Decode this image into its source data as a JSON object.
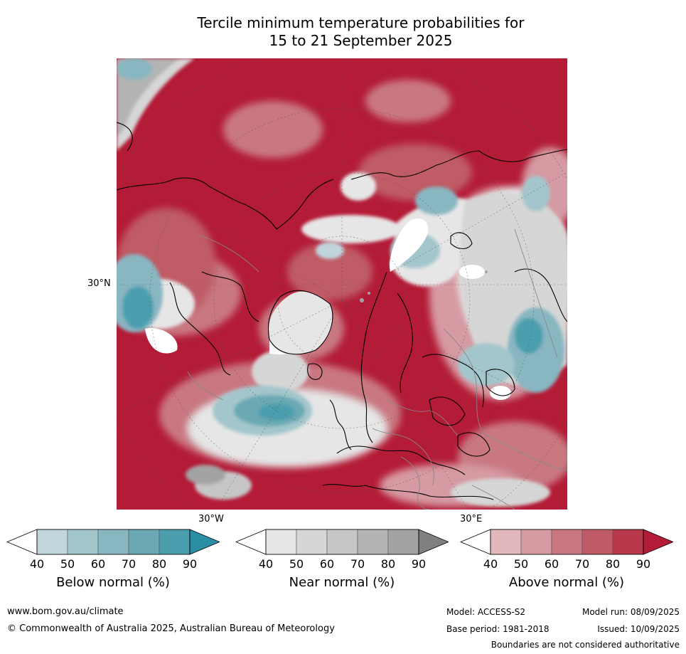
{
  "title": {
    "line1": "Tercile minimum temperature probabilities for",
    "line2": "15 to 21 September 2025"
  },
  "map": {
    "lat_label": "30°N",
    "lon_label_left": "30°W",
    "lon_label_right": "30°E",
    "colors": {
      "below": [
        "#c0d6dc",
        "#a3c6cc",
        "#88b6c1",
        "#6aa9b4",
        "#4b9eae",
        "#2a8ea4"
      ],
      "near": [
        "#e6e6e6",
        "#d6d6d6",
        "#c6c6c6",
        "#b4b4b4",
        "#a3a3a3",
        "#7f7f7f"
      ],
      "above": [
        "#e2b8bd",
        "#d69aa2",
        "#c97882",
        "#bf5b66",
        "#b8384a",
        "#b31b36"
      ]
    }
  },
  "colorbars": [
    {
      "title": "Below normal (%)",
      "ticks": [
        "40",
        "50",
        "60",
        "70",
        "80",
        "90"
      ],
      "colors": [
        "#c0d6dc",
        "#a3c6cc",
        "#88b6c1",
        "#6aa9b4",
        "#4b9eae",
        "#2a8ea4"
      ]
    },
    {
      "title": "Near normal (%)",
      "ticks": [
        "40",
        "50",
        "60",
        "70",
        "80",
        "90"
      ],
      "colors": [
        "#e6e6e6",
        "#d6d6d6",
        "#c6c6c6",
        "#b4b4b4",
        "#a3a3a3",
        "#7f7f7f"
      ]
    },
    {
      "title": "Above normal (%)",
      "ticks": [
        "40",
        "50",
        "60",
        "70",
        "80",
        "90"
      ],
      "colors": [
        "#e2b8bd",
        "#d69aa2",
        "#c97882",
        "#bf5b66",
        "#b8384a",
        "#b31b36"
      ]
    }
  ],
  "footer": {
    "website": "www.bom.gov.au/climate",
    "copyright": "© Commonwealth of Australia 2025, Australian Bureau of Meteorology",
    "model": "Model: ACCESS-S2",
    "model_run": "Model run: 08/09/2025",
    "base_period": "Base period: 1981-2018",
    "issued": "Issued: 10/09/2025",
    "disclaimer": "Boundaries are not considered authoritative"
  }
}
